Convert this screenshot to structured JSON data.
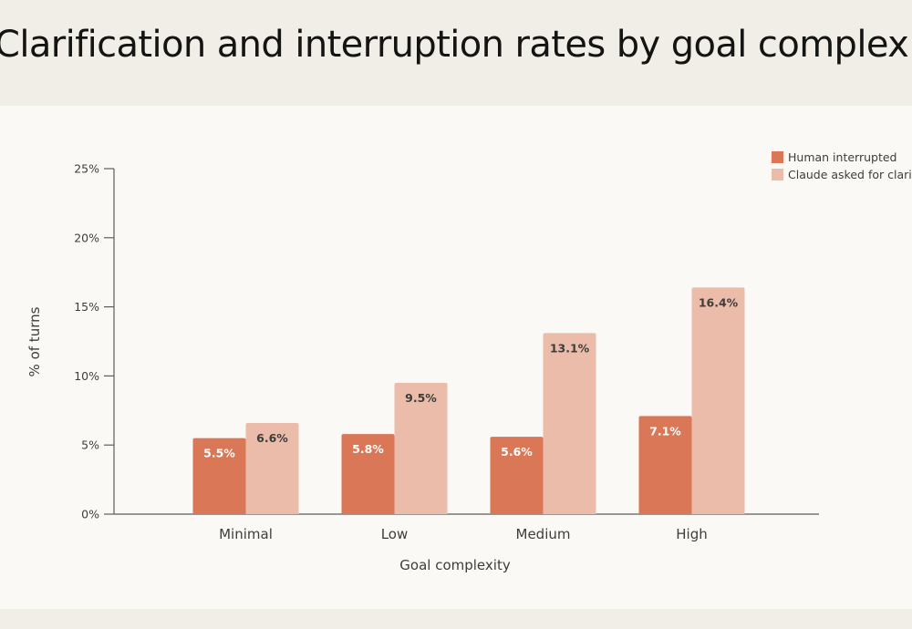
{
  "page": {
    "title": "Clarification and interruption rates by goal complexity"
  },
  "chart_data": {
    "type": "bar",
    "title": "Clarification and interruption rates by goal complexity",
    "xlabel": "Goal complexity",
    "ylabel": "% of turns",
    "categories": [
      "Minimal",
      "Low",
      "Medium",
      "High"
    ],
    "ylim": [
      0,
      25
    ],
    "yticks": [
      0,
      5,
      10,
      15,
      20,
      25
    ],
    "ytick_labels": [
      "0%",
      "5%",
      "10%",
      "15%",
      "20%",
      "25%"
    ],
    "grid": false,
    "legend_position": "top-right",
    "series": [
      {
        "name": "Human interrupted",
        "color": "#d97757",
        "label_color": "#ffffff",
        "values": [
          5.5,
          5.8,
          5.6,
          7.1
        ],
        "labels": [
          "5.5%",
          "5.8%",
          "5.6%",
          "7.1%"
        ]
      },
      {
        "name": "Claude asked for clarification",
        "color": "#ebbcaa",
        "label_color": "#3d3d3a",
        "values": [
          6.6,
          9.5,
          13.1,
          16.4
        ],
        "labels": [
          "6.6%",
          "9.5%",
          "13.1%",
          "16.4%"
        ]
      }
    ]
  }
}
